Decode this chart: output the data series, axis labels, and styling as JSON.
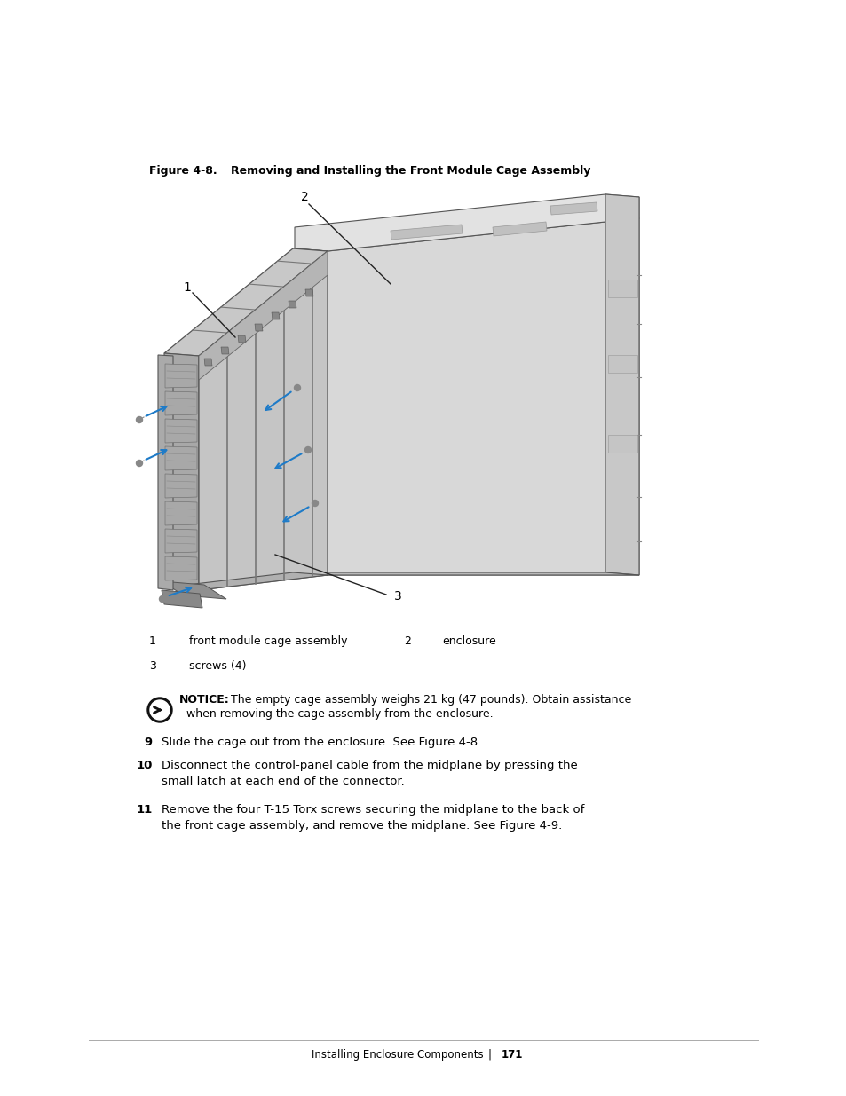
{
  "figure_title_bold": "Figure 4-8.",
  "figure_subtitle": "Removing and Installing the Front Module Cage Assembly",
  "label_1": "1",
  "label_2": "2",
  "label_3": "3",
  "legend_1_num": "1",
  "legend_1_text": "front module cage assembly",
  "legend_2_num": "2",
  "legend_2_text": "enclosure",
  "legend_3_num": "3",
  "legend_3_text": "screws (4)",
  "notice_bold": "NOTICE:",
  "notice_line1": " The empty cage assembly weighs 21 kg (47 pounds). Obtain assistance",
  "notice_line2": "when removing the cage assembly from the enclosure.",
  "step_9_num": "9",
  "step_9_text": "Slide the cage out from the enclosure. See Figure 4-8.",
  "step_10_num": "10",
  "step_10_line1": "Disconnect the control-panel cable from the midplane by pressing the",
  "step_10_line2": "small latch at each end of the connector.",
  "step_11_num": "11",
  "step_11_line1": "Remove the four T-15 Torx screws securing the midplane to the back of",
  "step_11_line2": "the front cage assembly, and remove the midplane. See Figure 4-9.",
  "footer_text": "Installing Enclosure Components",
  "footer_sep": "|",
  "footer_page": "171",
  "bg_color": "#ffffff",
  "text_color": "#000000",
  "arrow_color": "#1E7BC8",
  "enc_top_color": "#e2e2e2",
  "enc_right_color": "#c8c8c8",
  "enc_side_color": "#d5d5d5",
  "cage_top_color": "#c8c8c8",
  "cage_face_color": "#b8b8b8",
  "cage_slot_color": "#a0a0a0",
  "cage_div_color": "#888888",
  "sticker_color": "#c0c0c0"
}
